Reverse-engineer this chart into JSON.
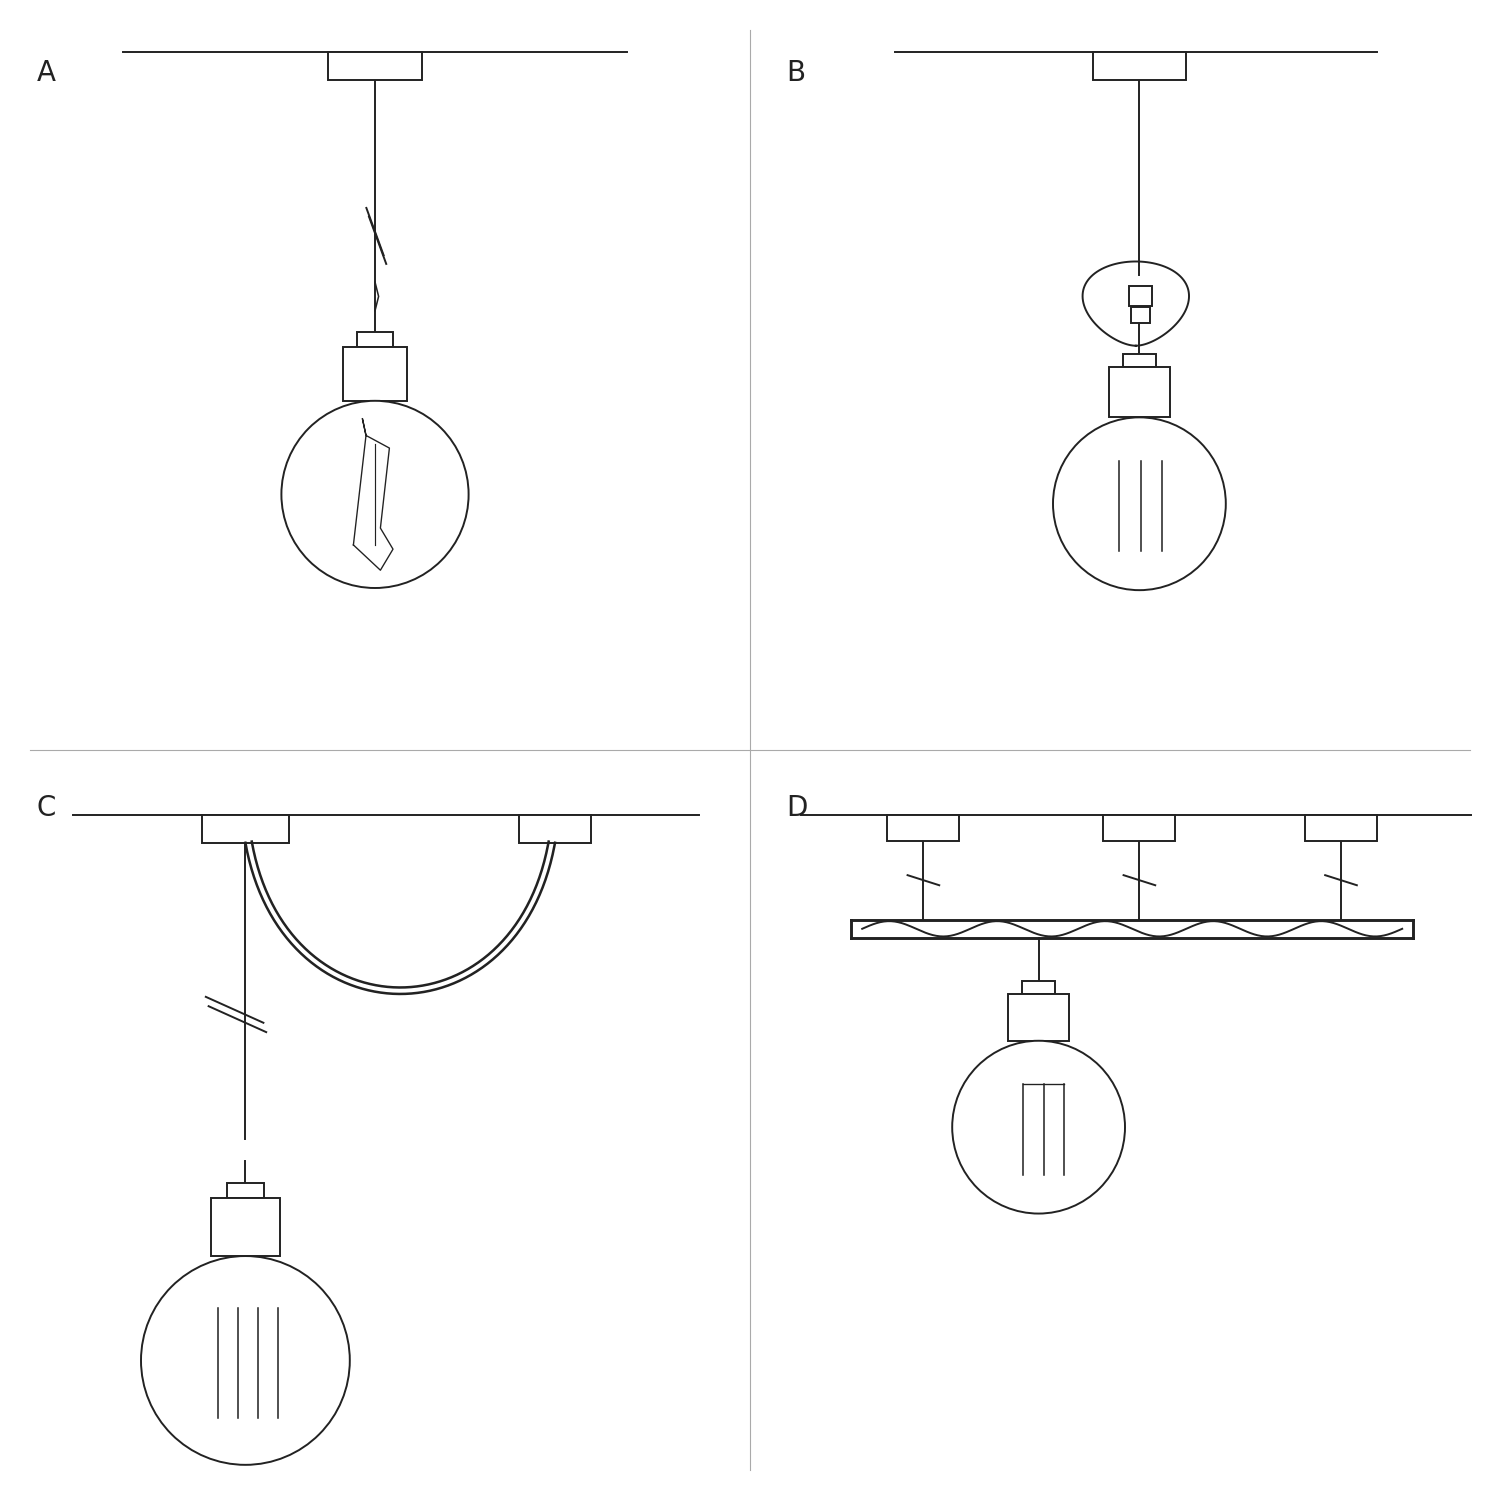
{
  "background_color": "#ffffff",
  "line_color": "#222222",
  "lw": 1.4,
  "label_fontsize": 20,
  "labels": [
    "A",
    "B",
    "C",
    "D"
  ],
  "divider_color": "#aaaaaa"
}
